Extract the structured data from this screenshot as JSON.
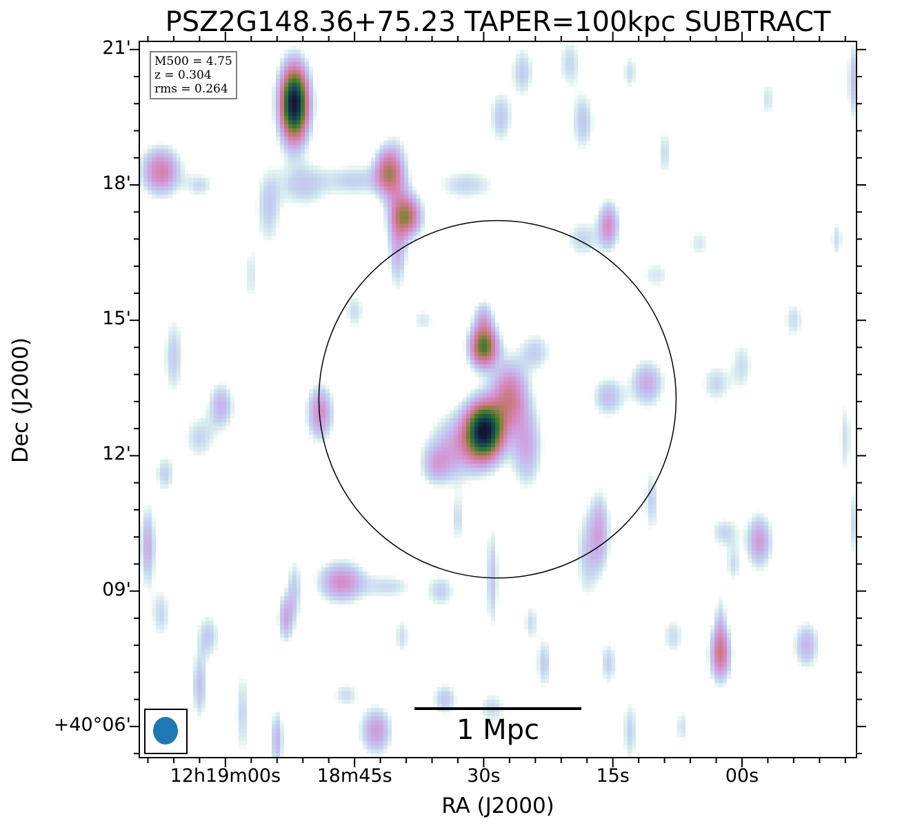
{
  "title": "PSZ2G148.36+75.23 TAPER=100kpc SUBTRACT",
  "info_box": {
    "lines": [
      "M500 = 4.75",
      "z = 0.304",
      "rms = 0.264"
    ]
  },
  "scalebar": {
    "label": "1 Mpc",
    "length_arcmin": 3.7
  },
  "beam": {
    "color": "#1f77b4",
    "shape": "ellipse"
  },
  "colors": {
    "colormap": "cubehelix_r",
    "circle": "#000000",
    "frame": "#000000"
  },
  "chart_data": {
    "type": "heatmap",
    "title": "PSZ2G148.36+75.23 TAPER=100kpc SUBTRACT",
    "xlabel": "RA (J2000)",
    "ylabel": "Dec (J2000)",
    "x_units": "seconds of RA offset from 12h18m00s (east positive)",
    "y_units": "arcmin above +40°00'",
    "xlim": [
      70.0,
      -13.3
    ],
    "ylim": [
      5.31,
      21.18
    ],
    "x_ticks": [
      {
        "value": 60,
        "label": "12h19m00s"
      },
      {
        "value": 45,
        "label": "18m45s"
      },
      {
        "value": 30,
        "label": "30s"
      },
      {
        "value": 15,
        "label": "15s"
      },
      {
        "value": 0,
        "label": "00s"
      }
    ],
    "x_minor_step": 3,
    "y_ticks": [
      {
        "value": 21,
        "label": "21'"
      },
      {
        "value": 18,
        "label": "18'"
      },
      {
        "value": 15,
        "label": "15'"
      },
      {
        "value": 12,
        "label": "12'"
      },
      {
        "value": 9,
        "label": "09'"
      },
      {
        "value": 6,
        "label": "+40°06'"
      }
    ],
    "y_minor_step": 0.6,
    "circle": {
      "ra_s": 28.4,
      "dec_arcmin": 13.25,
      "radius_arcmin": 3.96
    },
    "intensity_scale": {
      "min": 0,
      "max": 1
    },
    "sources": [
      {
        "ra": 52.0,
        "dec": 19.8,
        "sa": 1.1,
        "sd": 0.55,
        "peak": 1.0
      },
      {
        "ra": 29.9,
        "dec": 12.55,
        "sa": 1.45,
        "sd": 0.42,
        "peak": 0.95
      },
      {
        "ra": 30.0,
        "dec": 14.4,
        "sa": 1.1,
        "sd": 0.3,
        "peak": 0.6
      },
      {
        "ra": 27.0,
        "dec": 13.3,
        "sa": 1.4,
        "sd": 0.5,
        "peak": 0.38
      },
      {
        "ra": 33.0,
        "dec": 12.2,
        "sa": 2.2,
        "sd": 0.5,
        "peak": 0.22
      },
      {
        "ra": 25.0,
        "dec": 12.2,
        "sa": 1.2,
        "sd": 0.6,
        "peak": 0.22
      },
      {
        "ra": 30.0,
        "dec": 15.0,
        "sa": 0.8,
        "sd": 0.3,
        "peak": 0.2
      },
      {
        "ra": 35.5,
        "dec": 11.8,
        "sa": 1.2,
        "sd": 0.3,
        "peak": 0.18
      },
      {
        "ra": 24.0,
        "dec": 14.3,
        "sa": 1.3,
        "sd": 0.3,
        "peak": 0.14
      },
      {
        "ra": 38.8,
        "dec": 17.3,
        "sa": 1.1,
        "sd": 0.3,
        "peak": 0.42
      },
      {
        "ra": 41.2,
        "dec": 18.3,
        "sa": 1.0,
        "sd": 0.35,
        "peak": 0.38
      },
      {
        "ra": 40.0,
        "dec": 17.8,
        "sa": 1.0,
        "sd": 0.8,
        "peak": 0.18
      },
      {
        "ra": 40.0,
        "dec": 16.5,
        "sa": 0.7,
        "sd": 0.6,
        "peak": 0.16
      },
      {
        "ra": 45.0,
        "dec": 18.1,
        "sa": 2.5,
        "sd": 0.25,
        "peak": 0.14
      },
      {
        "ra": 51.0,
        "dec": 18.0,
        "sa": 2.0,
        "sd": 0.35,
        "peak": 0.15
      },
      {
        "ra": 55.0,
        "dec": 17.5,
        "sa": 1.0,
        "sd": 0.6,
        "peak": 0.15
      },
      {
        "ra": 67.5,
        "dec": 18.3,
        "sa": 1.5,
        "sd": 0.35,
        "peak": 0.35
      },
      {
        "ra": 63.0,
        "dec": 18.0,
        "sa": 1.2,
        "sd": 0.2,
        "peak": 0.12
      },
      {
        "ra": 28.0,
        "dec": 19.5,
        "sa": 0.9,
        "sd": 0.4,
        "peak": 0.16
      },
      {
        "ra": 25.5,
        "dec": 20.5,
        "sa": 0.9,
        "sd": 0.4,
        "peak": 0.15
      },
      {
        "ra": 32.0,
        "dec": 18.0,
        "sa": 2.5,
        "sd": 0.25,
        "peak": 0.13
      },
      {
        "ra": 18.5,
        "dec": 19.4,
        "sa": 0.9,
        "sd": 0.45,
        "peak": 0.16
      },
      {
        "ra": 20.0,
        "dec": 20.7,
        "sa": 0.9,
        "sd": 0.4,
        "peak": 0.13
      },
      {
        "ra": 15.5,
        "dec": 17.1,
        "sa": 0.8,
        "sd": 0.35,
        "peak": 0.3
      },
      {
        "ra": 18.5,
        "dec": 16.8,
        "sa": 1.4,
        "sd": 0.3,
        "peak": 0.13
      },
      {
        "ra": 10.0,
        "dec": 16.0,
        "sa": 1.3,
        "sd": 0.25,
        "peak": 0.1
      },
      {
        "ra": 49.0,
        "dec": 12.95,
        "sa": 1.0,
        "sd": 0.4,
        "peak": 0.3
      },
      {
        "ra": 60.5,
        "dec": 13.1,
        "sa": 1.0,
        "sd": 0.35,
        "peak": 0.2
      },
      {
        "ra": 63.0,
        "dec": 12.4,
        "sa": 1.3,
        "sd": 0.35,
        "peak": 0.13
      },
      {
        "ra": 66.0,
        "dec": 14.2,
        "sa": 0.8,
        "sd": 0.6,
        "peak": 0.15
      },
      {
        "ra": 67.0,
        "dec": 11.6,
        "sa": 0.8,
        "sd": 0.3,
        "peak": 0.14
      },
      {
        "ra": 11.0,
        "dec": 13.6,
        "sa": 1.3,
        "sd": 0.35,
        "peak": 0.22
      },
      {
        "ra": 15.5,
        "dec": 13.3,
        "sa": 1.3,
        "sd": 0.3,
        "peak": 0.18
      },
      {
        "ra": 3.0,
        "dec": 13.6,
        "sa": 1.2,
        "sd": 0.3,
        "peak": 0.13
      },
      {
        "ra": 0.0,
        "dec": 14.0,
        "sa": 0.9,
        "sd": 0.4,
        "peak": 0.12
      },
      {
        "ra": 16.5,
        "dec": 10.3,
        "sa": 0.8,
        "sd": 0.6,
        "peak": 0.22
      },
      {
        "ra": 10.5,
        "dec": 11.0,
        "sa": 0.6,
        "sd": 0.5,
        "peak": 0.14
      },
      {
        "ra": -2.0,
        "dec": 10.1,
        "sa": 1.0,
        "sd": 0.4,
        "peak": 0.26
      },
      {
        "ra": 2.0,
        "dec": 10.3,
        "sa": 1.2,
        "sd": 0.25,
        "peak": 0.13
      },
      {
        "ra": 1.0,
        "dec": 9.6,
        "sa": 0.6,
        "sd": 0.3,
        "peak": 0.12
      },
      {
        "ra": -13.0,
        "dec": 10.5,
        "sa": 0.5,
        "sd": 0.6,
        "peak": 0.12
      },
      {
        "ra": 2.5,
        "dec": 7.6,
        "sa": 0.8,
        "sd": 0.4,
        "peak": 0.38
      },
      {
        "ra": 2.5,
        "dec": 8.3,
        "sa": 0.5,
        "sd": 0.5,
        "peak": 0.12
      },
      {
        "ra": -7.5,
        "dec": 7.8,
        "sa": 1.0,
        "sd": 0.35,
        "peak": 0.2
      },
      {
        "ra": 46.5,
        "dec": 9.2,
        "sa": 1.8,
        "sd": 0.3,
        "peak": 0.3
      },
      {
        "ra": 41.0,
        "dec": 9.1,
        "sa": 2.0,
        "sd": 0.2,
        "peak": 0.12
      },
      {
        "ra": 35.0,
        "dec": 9.0,
        "sa": 1.2,
        "sd": 0.25,
        "peak": 0.14
      },
      {
        "ra": 53.0,
        "dec": 8.4,
        "sa": 0.6,
        "sd": 0.35,
        "peak": 0.22
      },
      {
        "ra": 52.0,
        "dec": 9.0,
        "sa": 0.6,
        "sd": 0.5,
        "peak": 0.15
      },
      {
        "ra": 29.0,
        "dec": 9.3,
        "sa": 0.5,
        "sd": 0.8,
        "peak": 0.16
      },
      {
        "ra": 18.0,
        "dec": 9.8,
        "sa": 0.9,
        "sd": 0.7,
        "peak": 0.14
      },
      {
        "ra": 69.0,
        "dec": 10.0,
        "sa": 0.6,
        "sd": 0.6,
        "peak": 0.22
      },
      {
        "ra": 67.5,
        "dec": 8.5,
        "sa": 0.8,
        "sd": 0.4,
        "peak": 0.13
      },
      {
        "ra": 62.0,
        "dec": 8.0,
        "sa": 0.9,
        "sd": 0.35,
        "peak": 0.15
      },
      {
        "ra": 63.0,
        "dec": 6.9,
        "sa": 0.6,
        "sd": 0.5,
        "peak": 0.18
      },
      {
        "ra": 58.0,
        "dec": 6.3,
        "sa": 0.6,
        "sd": 0.7,
        "peak": 0.13
      },
      {
        "ra": 54.0,
        "dec": 5.7,
        "sa": 0.5,
        "sd": 0.45,
        "peak": 0.2
      },
      {
        "ra": 42.5,
        "dec": 5.9,
        "sa": 1.2,
        "sd": 0.35,
        "peak": 0.26
      },
      {
        "ra": 46.0,
        "dec": 6.7,
        "sa": 1.1,
        "sd": 0.2,
        "peak": 0.12
      },
      {
        "ra": 34.5,
        "dec": 6.6,
        "sa": 1.0,
        "sd": 0.25,
        "peak": 0.16
      },
      {
        "ra": 29.0,
        "dec": 6.4,
        "sa": 1.1,
        "sd": 0.25,
        "peak": 0.13
      },
      {
        "ra": 23.0,
        "dec": 7.4,
        "sa": 0.6,
        "sd": 0.4,
        "peak": 0.15
      },
      {
        "ra": 15.5,
        "dec": 7.4,
        "sa": 0.7,
        "sd": 0.35,
        "peak": 0.14
      },
      {
        "ra": 13.0,
        "dec": 5.9,
        "sa": 0.6,
        "sd": 0.5,
        "peak": 0.14
      },
      {
        "ra": 7.0,
        "dec": 6.0,
        "sa": 0.4,
        "sd": 0.3,
        "peak": 0.12
      },
      {
        "ra": 33.0,
        "dec": 10.6,
        "sa": 0.6,
        "sd": 0.4,
        "peak": 0.12
      },
      {
        "ra": 24.5,
        "dec": 8.3,
        "sa": 0.6,
        "sd": 0.3,
        "peak": 0.12
      },
      {
        "ra": 39.5,
        "dec": 8.0,
        "sa": 0.6,
        "sd": 0.3,
        "peak": 0.12
      },
      {
        "ra": 57.0,
        "dec": 16.0,
        "sa": 0.6,
        "sd": 0.5,
        "peak": 0.1
      },
      {
        "ra": 45.0,
        "dec": 15.2,
        "sa": 0.8,
        "sd": 0.3,
        "peak": 0.12
      },
      {
        "ra": 37.0,
        "dec": 15.0,
        "sa": 1.0,
        "sd": 0.2,
        "peak": 0.1
      },
      {
        "ra": -13.0,
        "dec": 20.3,
        "sa": 0.5,
        "sd": 0.6,
        "peak": 0.18
      },
      {
        "ra": -11.0,
        "dec": 16.8,
        "sa": 0.5,
        "sd": 0.3,
        "peak": 0.12
      },
      {
        "ra": -6.0,
        "dec": 15.0,
        "sa": 0.8,
        "sd": 0.3,
        "peak": 0.12
      },
      {
        "ra": 5.0,
        "dec": 16.7,
        "sa": 1.0,
        "sd": 0.25,
        "peak": 0.1
      },
      {
        "ra": 9.0,
        "dec": 18.7,
        "sa": 0.6,
        "sd": 0.4,
        "peak": 0.12
      },
      {
        "ra": -3.0,
        "dec": 19.9,
        "sa": 0.6,
        "sd": 0.3,
        "peak": 0.11
      },
      {
        "ra": 13.0,
        "dec": 20.5,
        "sa": 0.6,
        "sd": 0.3,
        "peak": 0.12
      },
      {
        "ra": -12.0,
        "dec": 12.4,
        "sa": 0.5,
        "sd": 0.6,
        "peak": 0.12
      },
      {
        "ra": 8.0,
        "dec": 8.0,
        "sa": 0.9,
        "sd": 0.3,
        "peak": 0.12
      }
    ]
  }
}
